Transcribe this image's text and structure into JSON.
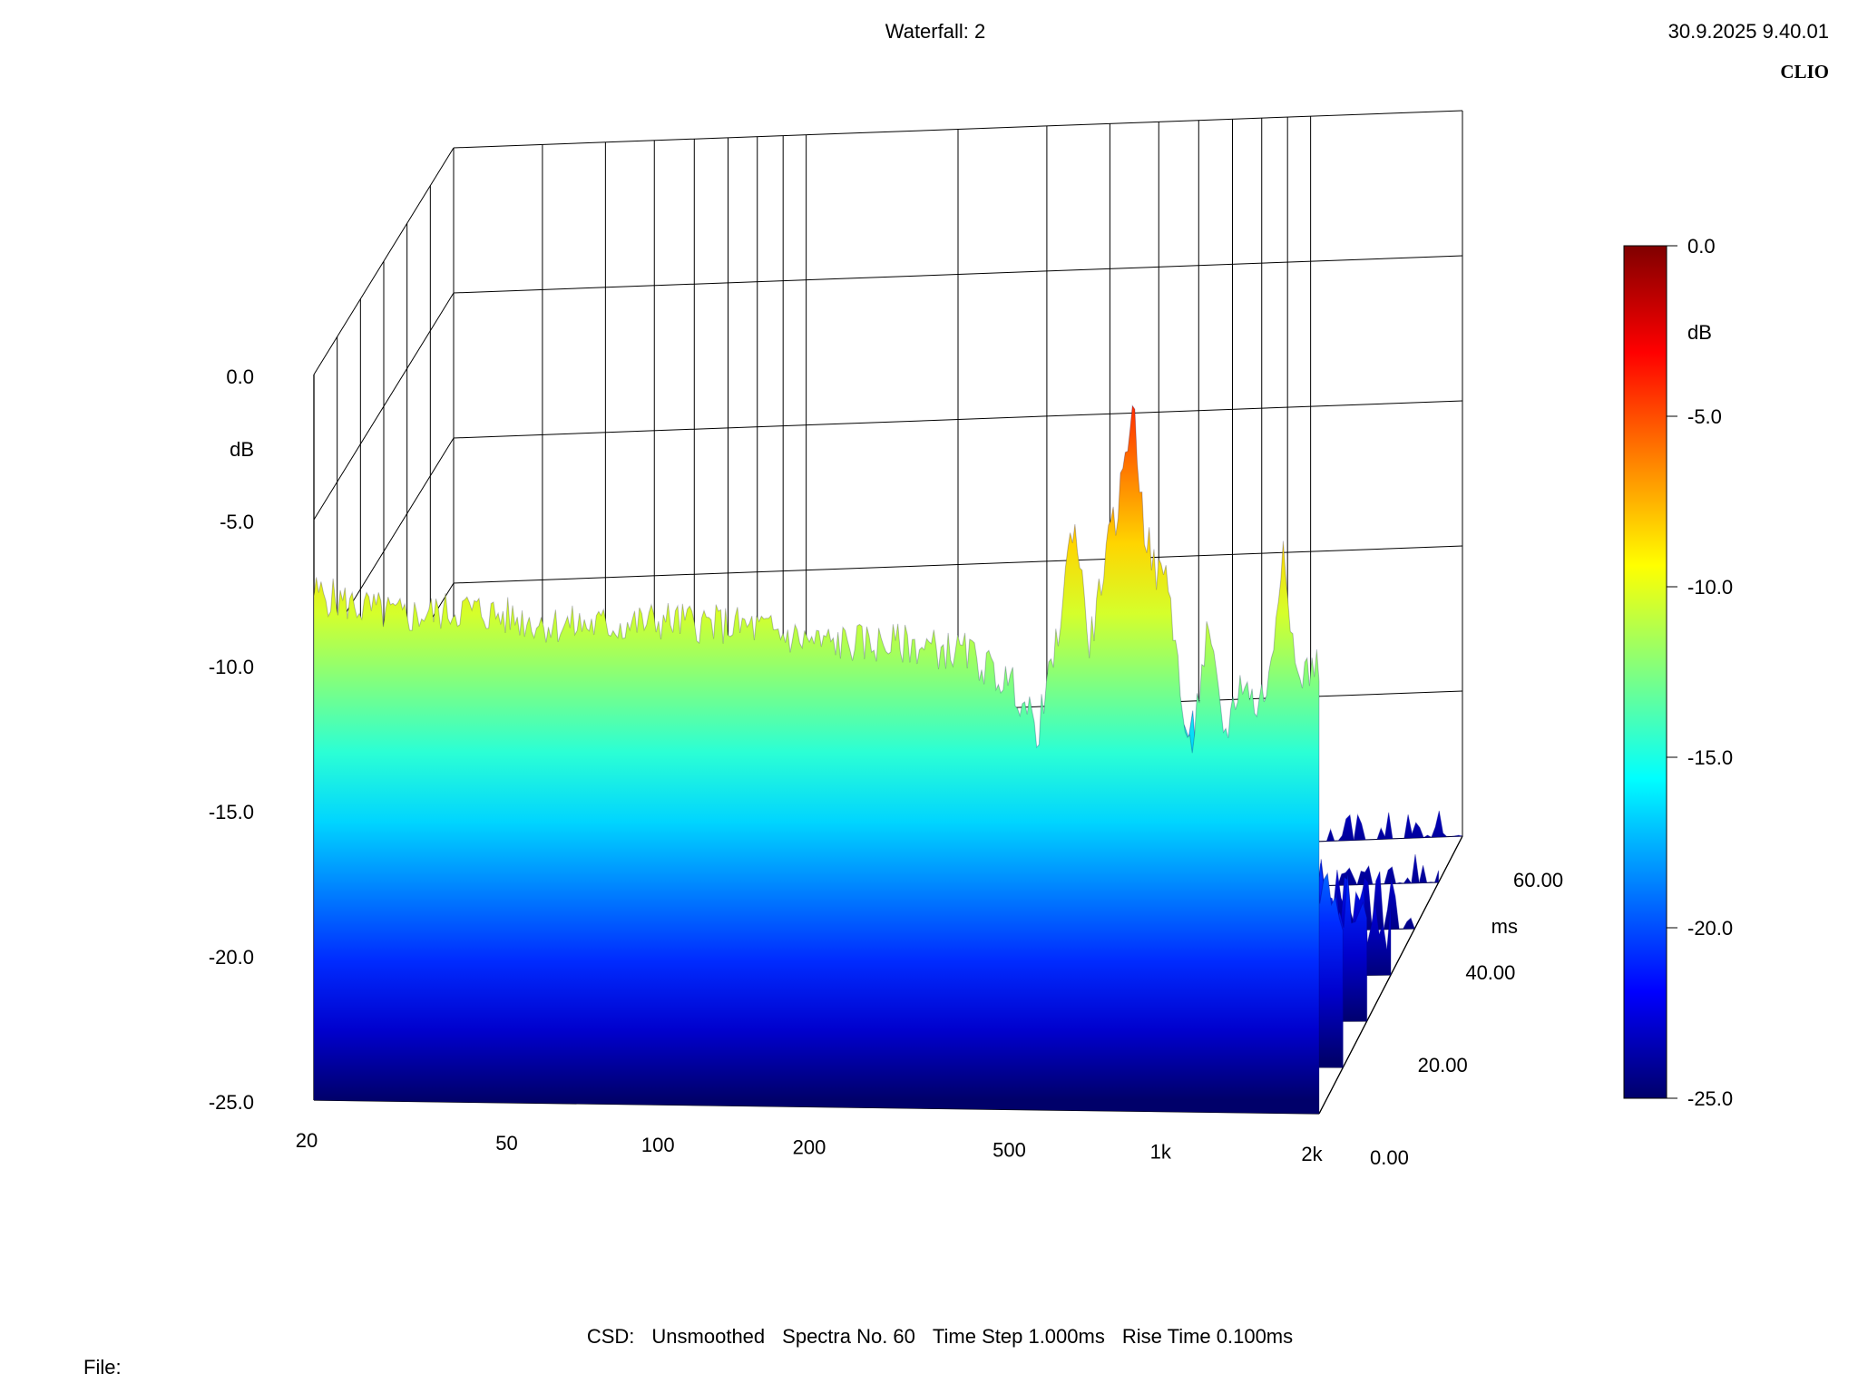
{
  "title": "Waterfall: 2",
  "timestamp": "30.9.2025 9.40.01",
  "brand": "CLIO",
  "file_label": "File:",
  "info": {
    "csd": "CSD:",
    "smoothing": "Unsmoothed",
    "spectra": "Spectra No. 60",
    "time_step": "Time Step 1.000ms",
    "rise_time": "Rise Time 0.100ms"
  },
  "colorscale": {
    "unit": "dB",
    "range": [
      -25,
      0
    ],
    "stops": [
      "#00006a",
      "#0000ff",
      "#0080ff",
      "#00ffff",
      "#80ff80",
      "#ffff00",
      "#ff8000",
      "#ff0000",
      "#800000"
    ],
    "tick_labels": [
      "0.0",
      "-5.0",
      "-10.0",
      "-15.0",
      "-20.0",
      "-25.0"
    ],
    "tick_values": [
      0,
      -5,
      -10,
      -15,
      -20,
      -25
    ]
  },
  "chart_data": {
    "type": "waterfall",
    "x": {
      "scale": "log",
      "range": [
        20,
        2000
      ],
      "tick_values": [
        20,
        50,
        100,
        200,
        500,
        1000,
        2000
      ],
      "tick_labels": [
        "20",
        "50",
        "100",
        "200",
        "500",
        "1k",
        "2k"
      ]
    },
    "z": {
      "label": "dB",
      "range": [
        -25,
        0
      ],
      "tick_values": [
        0,
        -5,
        -10,
        -15,
        -20,
        -25
      ],
      "tick_labels": [
        "0.0",
        "-5.0",
        "-10.0",
        "-15.0",
        "-20.0",
        "-25.0"
      ]
    },
    "t": {
      "label": "ms",
      "range": [
        0,
        60
      ],
      "tick_values": [
        0,
        20,
        40,
        60
      ],
      "tick_labels": [
        "0.00",
        "20.00",
        "40.00",
        "60.00"
      ]
    },
    "front_spectrum": {
      "time_ms": 0,
      "freq_hz": [
        20,
        25,
        30,
        40,
        50,
        60,
        80,
        100,
        150,
        200,
        300,
        400,
        500,
        550,
        600,
        650,
        700,
        750,
        800,
        850,
        900,
        950,
        1000,
        1100,
        1200,
        1300,
        1400,
        1500,
        1600,
        1700,
        1800,
        2000
      ],
      "level_db": [
        -7.5,
        -8.0,
        -8.3,
        -8.0,
        -8.3,
        -8.5,
        -8.5,
        -8.3,
        -8.5,
        -9.0,
        -9.0,
        -9.3,
        -10.5,
        -12.0,
        -9.0,
        -4.5,
        -9.0,
        -6.0,
        -4.0,
        -0.5,
        -5.0,
        -6.5,
        -6.5,
        -13.0,
        -8.5,
        -12.0,
        -10.0,
        -11.0,
        -10.0,
        -5.0,
        -10.0,
        -9.5
      ]
    },
    "decay_slices": [
      {
        "time_ms": 10,
        "freq_hz": [
          20,
          30,
          40,
          50,
          70,
          100,
          150,
          200,
          300,
          500,
          550,
          600,
          700,
          800,
          900,
          1000,
          1100,
          1300,
          1500,
          1700,
          2000
        ],
        "level_db": [
          -12.0,
          -11.5,
          -11.0,
          -12.0,
          -13.5,
          -14.5,
          -14.5,
          -15.0,
          -15.5,
          -16.0,
          -15.0,
          -11.0,
          -15.0,
          -14.0,
          -11.0,
          -15.0,
          -16.0,
          -17.0,
          -17.5,
          -18.0,
          -19.5
        ]
      },
      {
        "time_ms": 20,
        "freq_hz": [
          20,
          30,
          40,
          50,
          70,
          100,
          150,
          200,
          300,
          500,
          550,
          600,
          700,
          800,
          900,
          1000,
          1100,
          1300,
          1500,
          1700,
          2000
        ],
        "level_db": [
          -15.0,
          -14.0,
          -14.5,
          -14.5,
          -16.0,
          -17.0,
          -17.0,
          -17.5,
          -18.0,
          -18.5,
          -17.0,
          -14.5,
          -17.5,
          -16.5,
          -14.5,
          -17.5,
          -18.5,
          -19.5,
          -20.0,
          -20.5,
          -21.5
        ]
      },
      {
        "time_ms": 30,
        "freq_hz": [
          20,
          30,
          40,
          50,
          70,
          100,
          150,
          200,
          300,
          500,
          550,
          600,
          700,
          800,
          900,
          1000,
          1100,
          1300,
          1500,
          1700,
          2000
        ],
        "level_db": [
          -18.0,
          -17.0,
          -17.5,
          -17.0,
          -18.5,
          -19.0,
          -19.0,
          -19.5,
          -20.0,
          -20.5,
          -19.5,
          -17.5,
          -19.5,
          -19.0,
          -17.5,
          -20.0,
          -20.5,
          -21.5,
          -22.0,
          -22.5,
          -23.5
        ]
      },
      {
        "time_ms": 40,
        "freq_hz": [
          20,
          30,
          40,
          50,
          70,
          100,
          150,
          200,
          300,
          500,
          550,
          600,
          700,
          800,
          900,
          1000,
          1100,
          1300,
          1500,
          1700,
          2000
        ],
        "level_db": [
          -20.5,
          -20.0,
          -20.0,
          -20.0,
          -21.0,
          -21.5,
          -21.5,
          -21.5,
          -22.0,
          -22.5,
          -22.0,
          -20.5,
          -22.0,
          -21.5,
          -20.5,
          -22.5,
          -23.0,
          -23.5,
          -24.0,
          -24.0,
          -25.0
        ]
      },
      {
        "time_ms": 50,
        "freq_hz": [
          20,
          30,
          40,
          50,
          70,
          100,
          150,
          200,
          300,
          500,
          550,
          600,
          700,
          800,
          900,
          1000,
          1100,
          1300,
          1500,
          1700,
          2000
        ],
        "level_db": [
          -22.5,
          -22.0,
          -22.0,
          -22.5,
          -23.0,
          -23.5,
          -23.5,
          -23.5,
          -24.0,
          -24.0,
          -23.5,
          -22.5,
          -23.5,
          -23.5,
          -22.5,
          -24.0,
          -24.5,
          -25.0,
          -25.0,
          -25.0,
          -25.0
        ]
      },
      {
        "time_ms": 60,
        "freq_hz": [
          20,
          30,
          40,
          50,
          70,
          100,
          150,
          200,
          300,
          500,
          550,
          600,
          700,
          800,
          900,
          1000,
          1100,
          1300,
          1500,
          1700,
          2000
        ],
        "level_db": [
          -24.0,
          -23.5,
          -23.5,
          -24.0,
          -24.5,
          -24.5,
          -24.5,
          -24.5,
          -25.0,
          -25.0,
          -24.5,
          -24.0,
          -24.5,
          -24.5,
          -24.0,
          -25.0,
          -25.0,
          -25.0,
          -25.0,
          -25.0,
          -25.0
        ]
      }
    ]
  }
}
